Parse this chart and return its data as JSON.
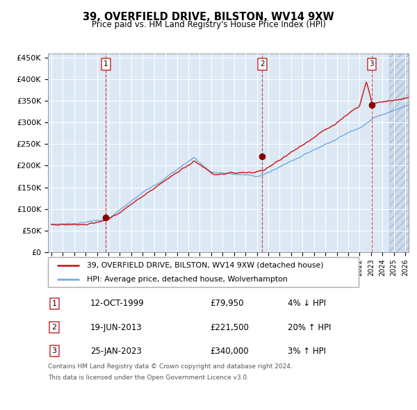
{
  "title": "39, OVERFIELD DRIVE, BILSTON, WV14 9XW",
  "subtitle": "Price paid vs. HM Land Registry's House Price Index (HPI)",
  "ylim": [
    0,
    460000
  ],
  "yticks": [
    0,
    50000,
    100000,
    150000,
    200000,
    250000,
    300000,
    350000,
    400000,
    450000
  ],
  "ytick_labels": [
    "£0",
    "£50K",
    "£100K",
    "£150K",
    "£200K",
    "£250K",
    "£300K",
    "£350K",
    "£400K",
    "£450K"
  ],
  "xlim_start": 1994.7,
  "xlim_end": 2026.3,
  "background_color": "#dce9f5",
  "hpi_color": "#7aaadd",
  "price_color": "#cc2222",
  "sale_dot_color": "#880000",
  "vline_color": "#cc3333",
  "hatch_start": 2024.58,
  "purchases": [
    {
      "num": 1,
      "date_x": 1999.78,
      "price": 79950,
      "label": "1",
      "date_str": "12-OCT-1999",
      "price_str": "£79,950",
      "pct_str": "4% ↓ HPI"
    },
    {
      "num": 2,
      "date_x": 2013.46,
      "price": 221500,
      "label": "2",
      "date_str": "19-JUN-2013",
      "price_str": "£221,500",
      "pct_str": "20% ↑ HPI"
    },
    {
      "num": 3,
      "date_x": 2023.07,
      "price": 340000,
      "label": "3",
      "date_str": "25-JAN-2023",
      "price_str": "£340,000",
      "pct_str": "3% ↑ HPI"
    }
  ],
  "legend_line1": "39, OVERFIELD DRIVE, BILSTON, WV14 9XW (detached house)",
  "legend_line2": "HPI: Average price, detached house, Wolverhampton",
  "footer1": "Contains HM Land Registry data © Crown copyright and database right 2024.",
  "footer2": "This data is licensed under the Open Government Licence v3.0."
}
